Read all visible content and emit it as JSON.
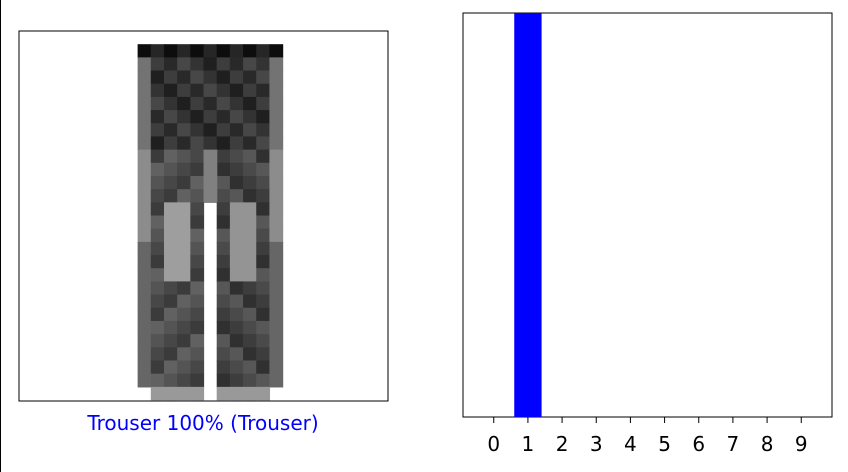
{
  "prediction_label": "Trouser 100% (Trouser)",
  "label_color": "#0000ff",
  "bar_color": "#0000ff",
  "chart_data": {
    "type": "bar",
    "categories": [
      "0",
      "1",
      "2",
      "3",
      "4",
      "5",
      "6",
      "7",
      "8",
      "9"
    ],
    "values": [
      0,
      1,
      0,
      0,
      0,
      0,
      0,
      0,
      0,
      0
    ],
    "ylim": [
      0,
      1
    ],
    "title": "",
    "xlabel": "",
    "ylabel": ""
  }
}
